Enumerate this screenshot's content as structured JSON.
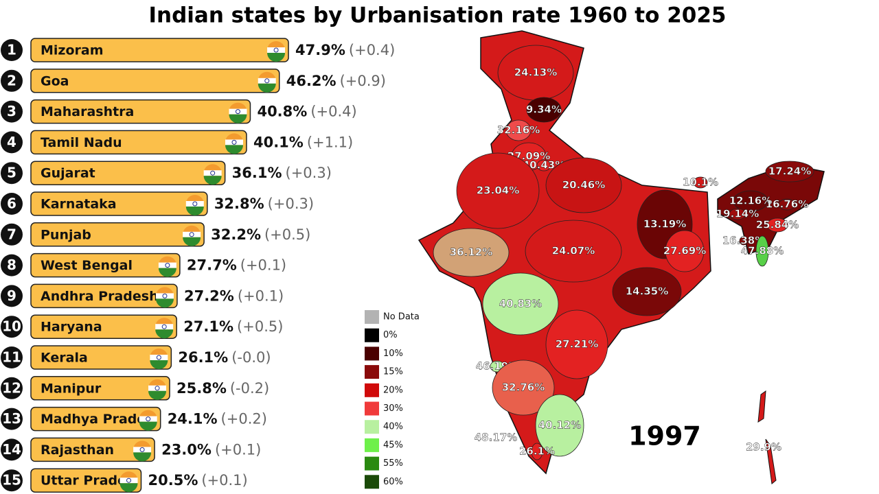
{
  "chart_data": {
    "type": "bar",
    "title": "Indian states by Urbanisation rate 1960 to 2025",
    "ranks": [
      1,
      2,
      3,
      4,
      5,
      6,
      7,
      8,
      9,
      10,
      11,
      12,
      13,
      14,
      15
    ],
    "categories": [
      "Mizoram",
      "Goa",
      "Maharashtra",
      "Tamil Nadu",
      "Gujarat",
      "Karnataka",
      "Punjab",
      "West Bengal",
      "Andhra Pradesh",
      "Haryana",
      "Kerala",
      "Manipur",
      "Madhya Prades",
      "Rajasthan",
      "Uttar Prades"
    ],
    "values": [
      47.9,
      46.2,
      40.8,
      40.1,
      36.1,
      32.8,
      32.2,
      27.7,
      27.2,
      27.1,
      26.1,
      25.8,
      24.1,
      23.0,
      20.5
    ],
    "value_labels": [
      "47.9%",
      "46.2%",
      "40.8%",
      "40.1%",
      "36.1%",
      "32.8%",
      "32.2%",
      "27.7%",
      "27.2%",
      "27.1%",
      "26.1%",
      "25.8%",
      "24.1%",
      "23.0%",
      "20.5%"
    ],
    "change_labels": [
      "(+0.4)",
      "(+0.9)",
      "(+0.4)",
      "(+1.1)",
      "(+0.3)",
      "(+0.3)",
      "(+0.5)",
      "(+0.1)",
      "(+0.1)",
      "(+0.5)",
      "(-0.0)",
      "(-0.2)",
      "(+0.2)",
      "(+0.1)",
      "(+0.1)"
    ],
    "color": "#fbbf4a",
    "year": "1997"
  },
  "map": {
    "regions": [
      {
        "label": "24.13%",
        "color": "#d41a1a"
      },
      {
        "label": "9.34%",
        "color": "#4a0000"
      },
      {
        "label": "32.16%",
        "color": "#ef4b4b"
      },
      {
        "label": "27.09%",
        "color": "#e32222"
      },
      {
        "label": "40.43%",
        "color": "#e32222"
      },
      {
        "label": "23.04%",
        "color": "#d41a1a"
      },
      {
        "label": "20.46%",
        "color": "#c81414"
      },
      {
        "label": "10.1%",
        "color": "#d41a1a"
      },
      {
        "label": "17.24%",
        "color": "#8a0a0a"
      },
      {
        "label": "12.16%",
        "color": "#6a0505"
      },
      {
        "label": "16.76%",
        "color": "#8a0a0a"
      },
      {
        "label": "19.14%",
        "color": "#a00c0c"
      },
      {
        "label": "13.19%",
        "color": "#6a0505"
      },
      {
        "label": "25.84%",
        "color": "#e32222"
      },
      {
        "label": "16.38%",
        "color": "#8a0a0a"
      },
      {
        "label": "47.88%",
        "color": "#58d048"
      },
      {
        "label": "36.12%",
        "color": "#d2a276"
      },
      {
        "label": "24.07%",
        "color": "#d41a1a"
      },
      {
        "label": "27.69%",
        "color": "#e32222"
      },
      {
        "label": "14.35%",
        "color": "#7a0808"
      },
      {
        "label": "40.83%",
        "color": "#b8f0a0"
      },
      {
        "label": "27.21%",
        "color": "#e32222"
      },
      {
        "label": "46.19%",
        "color": "#b8f0a0"
      },
      {
        "label": "32.76%",
        "color": "#e8604c"
      },
      {
        "label": "40.12%",
        "color": "#b8f0a0"
      },
      {
        "label": "48.17%",
        "color": "#b8f0a0"
      },
      {
        "label": "26.1%",
        "color": "#e32222"
      },
      {
        "label": "29.9%",
        "color": "#e32222"
      }
    ],
    "legend": [
      {
        "label": "No Data",
        "color": "#b3b3b3"
      },
      {
        "label": "0%",
        "color": "#000000"
      },
      {
        "label": "10%",
        "color": "#4a0000"
      },
      {
        "label": "15%",
        "color": "#8a0a0a"
      },
      {
        "label": "20%",
        "color": "#d00a0a"
      },
      {
        "label": "30%",
        "color": "#f03a3a"
      },
      {
        "label": "40%",
        "color": "#b8f0a0"
      },
      {
        "label": "45%",
        "color": "#6ef04a"
      },
      {
        "label": "55%",
        "color": "#2a8a10"
      },
      {
        "label": "60%",
        "color": "#1a4a08"
      }
    ]
  }
}
